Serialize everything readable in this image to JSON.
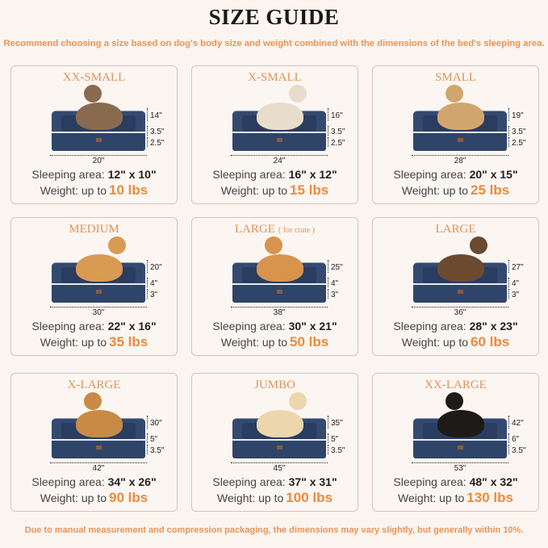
{
  "title": "SIZE GUIDE",
  "subtitle": "Recommend choosing a size based on dog's body size and weight combined with the dimensions of the bed's sleeping area.",
  "footer": "Due to manual measurement and compression packaging, the dimensions may vary slightly, but generally within 10%.",
  "sleeping_label": "Sleeping area:",
  "weight_label": "Weight: up to",
  "colors": {
    "accent": "#e8955a",
    "bed": "#34496f",
    "background": "#fbf4ef"
  },
  "sizes": [
    {
      "name": "XX-SMALL",
      "note": "",
      "pet": "cat",
      "height": "14\"",
      "top": "3.5\"",
      "base": "2.5\"",
      "length": "20\"",
      "sleeping": "12\" x 10\"",
      "weight": "10 lbs"
    },
    {
      "name": "X-SMALL",
      "note": "",
      "pet": "small dog",
      "height": "16\"",
      "top": "3.5\"",
      "base": "2.5\"",
      "length": "24\"",
      "sleeping": "16\" x 12\"",
      "weight": "15 lbs"
    },
    {
      "name": "SMALL",
      "note": "",
      "pet": "french bulldog",
      "height": "19\"",
      "top": "3.5\"",
      "base": "2.5\"",
      "length": "28\"",
      "sleeping": "20\" x 15\"",
      "weight": "25 lbs"
    },
    {
      "name": "MEDIUM",
      "note": "",
      "pet": "corgi",
      "height": "20\"",
      "top": "4\"",
      "base": "3\"",
      "length": "30\"",
      "sleeping": "22\" x 16\"",
      "weight": "35 lbs"
    },
    {
      "name": "LARGE",
      "note": "( for crate )",
      "pet": "shiba inu",
      "height": "25\"",
      "top": "4\"",
      "base": "3\"",
      "length": "38\"",
      "sleeping": "30\" x 21\"",
      "weight": "50 lbs"
    },
    {
      "name": "LARGE",
      "note": "",
      "pet": "collie",
      "height": "27\"",
      "top": "4\"",
      "base": "3\"",
      "length": "36\"",
      "sleeping": "28\" x 23\"",
      "weight": "60 lbs"
    },
    {
      "name": "X-LARGE",
      "note": "",
      "pet": "golden retriever",
      "height": "30\"",
      "top": "5\"",
      "base": "3.5\"",
      "length": "42\"",
      "sleeping": "34\" x 26\"",
      "weight": "90 lbs"
    },
    {
      "name": "JUMBO",
      "note": "",
      "pet": "labrador",
      "height": "35\"",
      "top": "5\"",
      "base": "3.5\"",
      "length": "45\"",
      "sleeping": "37\" x 31\"",
      "weight": "100 lbs"
    },
    {
      "name": "XX-LARGE",
      "note": "",
      "pet": "rottweiler",
      "height": "42\"",
      "top": "6\"",
      "base": "3.5\"",
      "length": "53\"",
      "sleeping": "48\" x 32\"",
      "weight": "130 lbs"
    }
  ]
}
